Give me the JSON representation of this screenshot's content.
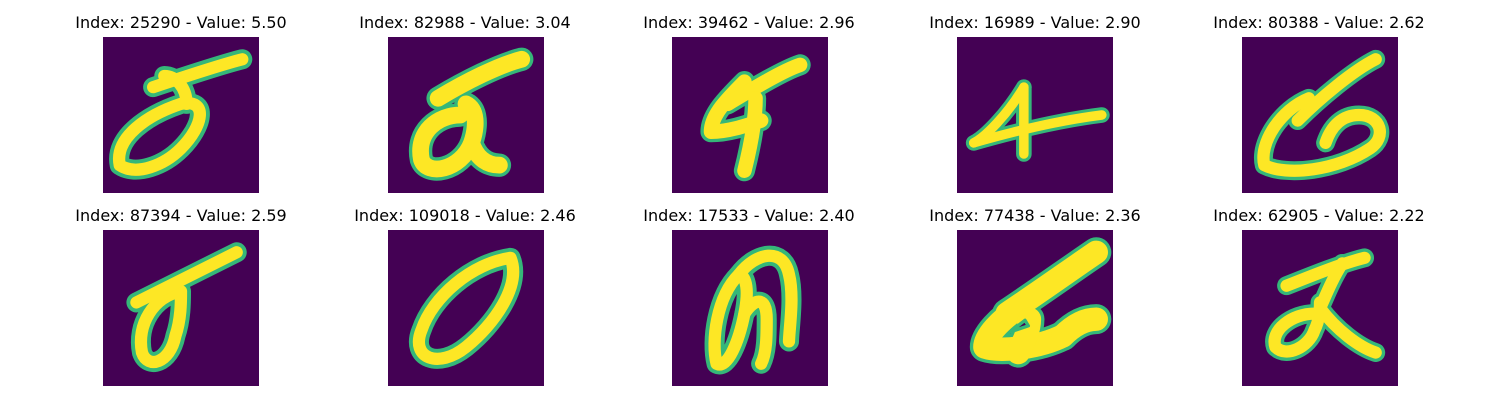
{
  "background_color": "#440154",
  "glyph_color": "#fde725",
  "edge_color": "#35b779",
  "panels": [
    {
      "title": "Index: 25290 - Value: 5.50"
    },
    {
      "title": "Index: 82988 - Value: 3.04"
    },
    {
      "title": "Index: 39462 - Value: 2.96"
    },
    {
      "title": "Index: 16989 - Value: 2.90"
    },
    {
      "title": "Index: 80388 - Value: 2.62"
    },
    {
      "title": "Index: 87394 - Value: 2.59"
    },
    {
      "title": "Index: 109018 - Value: 2.46"
    },
    {
      "title": "Index: 17533 - Value: 2.40"
    },
    {
      "title": "Index: 77438 - Value: 2.36"
    },
    {
      "title": "Index: 62905 - Value: 2.22"
    }
  ]
}
